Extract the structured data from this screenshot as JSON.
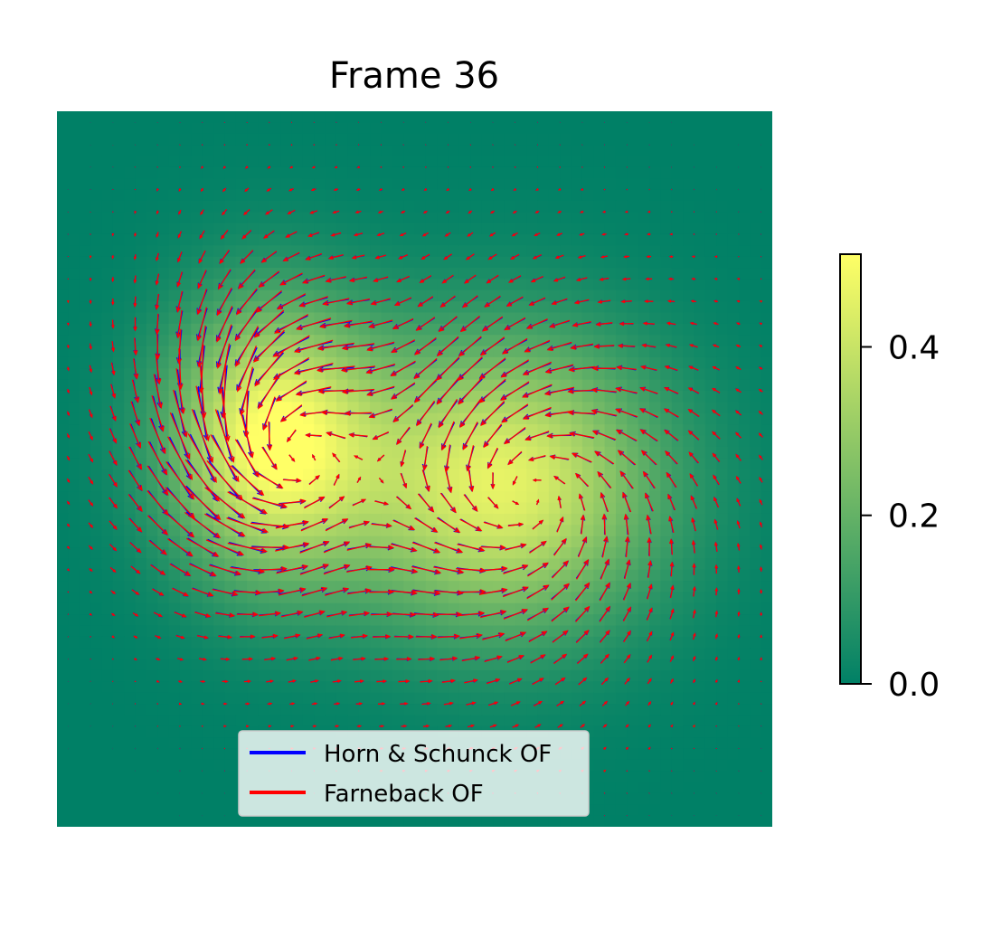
{
  "chart_data": {
    "type": "heatmap",
    "title": "Frame 36",
    "colormap": "summer",
    "colorbar": {
      "min": 0.0,
      "max": 0.51,
      "ticks": [
        0.0,
        0.2,
        0.4
      ],
      "tick_labels": [
        "0.0",
        "0.2",
        "0.4"
      ]
    },
    "blobs": [
      {
        "cx": 0.3,
        "cy": 0.46,
        "sx": 0.1,
        "sy": 0.13,
        "amp": 0.5
      },
      {
        "cx": 0.62,
        "cy": 0.52,
        "sx": 0.15,
        "sy": 0.14,
        "amp": 0.46
      }
    ],
    "axes_visible": false,
    "legend": {
      "placement": "lower center",
      "entries": [
        {
          "label": "Horn & Schunck OF",
          "color": "#0000ff"
        },
        {
          "label": "Farneback OF",
          "color": "#ff0000"
        }
      ]
    },
    "series": [
      {
        "name": "Horn & Schunck OF",
        "kind": "quiver",
        "color": "#0000ff"
      },
      {
        "name": "Farneback OF",
        "kind": "quiver",
        "color": "#ff0000"
      }
    ]
  }
}
